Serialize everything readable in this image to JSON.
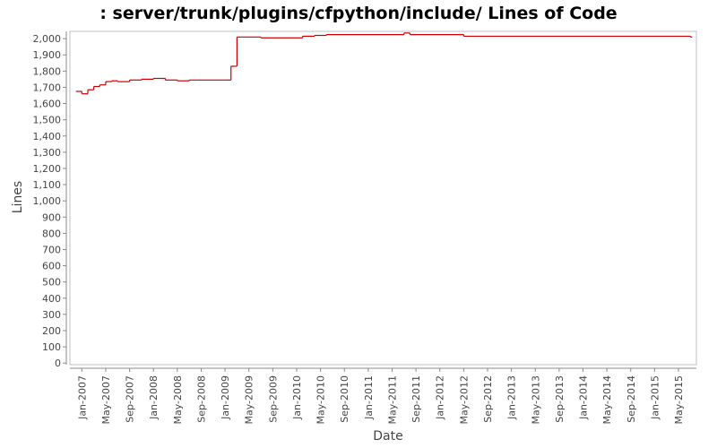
{
  "chart_data": {
    "type": "line",
    "step": true,
    "title": ": server/trunk/plugins/cfpython/include/ Lines of Code",
    "xlabel": "Date",
    "ylabel": "Lines",
    "series": [
      {
        "name": "Lines of Code",
        "color": "#cc0000",
        "x": [
          "2006-12",
          "2007-01",
          "2007-02",
          "2007-03",
          "2007-04",
          "2007-05",
          "2007-06",
          "2007-07",
          "2007-09",
          "2007-11",
          "2008-01",
          "2008-03",
          "2008-05",
          "2008-07",
          "2009-01",
          "2009-02",
          "2009-03",
          "2009-07",
          "2010-02",
          "2010-04",
          "2010-06",
          "2011-07",
          "2011-08",
          "2012-05",
          "2015-07"
        ],
        "values": [
          1675,
          1660,
          1685,
          1705,
          1715,
          1735,
          1740,
          1735,
          1745,
          1750,
          1755,
          1745,
          1740,
          1745,
          1745,
          1830,
          2010,
          2005,
          2015,
          2020,
          2025,
          2035,
          2025,
          2015,
          2010
        ]
      }
    ],
    "xlim": [
      "2006-11",
      "2015-08"
    ],
    "xticks": [
      {
        "value": "2007-01",
        "label": "Jan-2007"
      },
      {
        "value": "2007-05",
        "label": "May-2007"
      },
      {
        "value": "2007-09",
        "label": "Sep-2007"
      },
      {
        "value": "2008-01",
        "label": "Jan-2008"
      },
      {
        "value": "2008-05",
        "label": "May-2008"
      },
      {
        "value": "2008-09",
        "label": "Sep-2008"
      },
      {
        "value": "2009-01",
        "label": "Jan-2009"
      },
      {
        "value": "2009-05",
        "label": "May-2009"
      },
      {
        "value": "2009-09",
        "label": "Sep-2009"
      },
      {
        "value": "2010-01",
        "label": "Jan-2010"
      },
      {
        "value": "2010-05",
        "label": "May-2010"
      },
      {
        "value": "2010-09",
        "label": "Sep-2010"
      },
      {
        "value": "2011-01",
        "label": "Jan-2011"
      },
      {
        "value": "2011-05",
        "label": "May-2011"
      },
      {
        "value": "2011-09",
        "label": "Sep-2011"
      },
      {
        "value": "2012-01",
        "label": "Jan-2012"
      },
      {
        "value": "2012-05",
        "label": "May-2012"
      },
      {
        "value": "2012-09",
        "label": "Sep-2012"
      },
      {
        "value": "2013-01",
        "label": "Jan-2013"
      },
      {
        "value": "2013-05",
        "label": "May-2013"
      },
      {
        "value": "2013-09",
        "label": "Sep-2013"
      },
      {
        "value": "2014-01",
        "label": "Jan-2014"
      },
      {
        "value": "2014-05",
        "label": "May-2014"
      },
      {
        "value": "2014-09",
        "label": "Sep-2014"
      },
      {
        "value": "2015-01",
        "label": "Jan-2015"
      },
      {
        "value": "2015-05",
        "label": "May-2015"
      }
    ],
    "ylim": [
      -10,
      2045
    ],
    "yticks": [
      0,
      100,
      200,
      300,
      400,
      500,
      600,
      700,
      800,
      900,
      {
        "value": 1000,
        "label": "1,000"
      },
      {
        "value": 1100,
        "label": "1,100"
      },
      {
        "value": 1200,
        "label": "1,200"
      },
      {
        "value": 1300,
        "label": "1,300"
      },
      {
        "value": 1400,
        "label": "1,400"
      },
      {
        "value": 1500,
        "label": "1,500"
      },
      {
        "value": 1600,
        "label": "1,600"
      },
      {
        "value": 1700,
        "label": "1,700"
      },
      {
        "value": 1800,
        "label": "1,800"
      },
      {
        "value": 1900,
        "label": "1,900"
      },
      {
        "value": 2000,
        "label": "2,000"
      }
    ]
  }
}
